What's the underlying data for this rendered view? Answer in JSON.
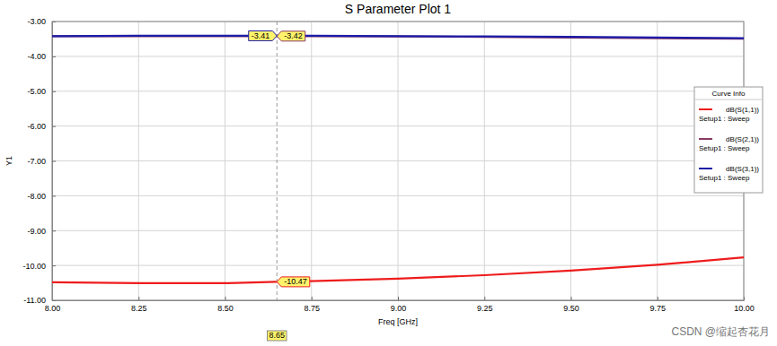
{
  "chart_data": {
    "type": "line",
    "title": "S Parameter Plot 1",
    "x_label": "Freq [GHz]",
    "y_label": "Y1",
    "x": [
      8.0,
      8.25,
      8.5,
      8.65,
      8.75,
      9.0,
      9.25,
      9.5,
      9.75,
      10.0
    ],
    "series": [
      {
        "name": "dB(S(1,1))",
        "sweep": "Setup1 : Sweep",
        "color": "#ee1c1c",
        "values": [
          -10.48,
          -10.51,
          -10.51,
          -10.47,
          -10.45,
          -10.38,
          -10.28,
          -10.15,
          -9.98,
          -9.77
        ]
      },
      {
        "name": "dB(S(2,1))",
        "sweep": "Setup1 : Sweep",
        "color": "#8b3a62",
        "values": [
          -3.42,
          -3.42,
          -3.42,
          -3.42,
          -3.42,
          -3.43,
          -3.44,
          -3.46,
          -3.48,
          -3.49
        ]
      },
      {
        "name": "dB(S(3,1))",
        "sweep": "Setup1 : Sweep",
        "color": "#1c1ca8",
        "values": [
          -3.42,
          -3.41,
          -3.41,
          -3.41,
          -3.41,
          -3.42,
          -3.43,
          -3.44,
          -3.46,
          -3.48
        ]
      }
    ],
    "xlim": [
      8,
      10
    ],
    "xticks": [
      {
        "value": 8,
        "label": "8.00"
      },
      {
        "value": 8.25,
        "label": "8.25"
      },
      {
        "value": 8.5,
        "label": "8.50"
      },
      {
        "value": 8.75,
        "label": "8.75"
      },
      {
        "value": 9,
        "label": "9.00"
      },
      {
        "value": 9.25,
        "label": "9.25"
      },
      {
        "value": 9.5,
        "label": "9.50"
      },
      {
        "value": 9.75,
        "label": "9.75"
      },
      {
        "value": 10,
        "label": "10.00"
      }
    ],
    "ylim": [
      -11,
      -3
    ],
    "yticks": [
      {
        "value": -11,
        "label": "-11.00"
      },
      {
        "value": -10,
        "label": "-10.00"
      },
      {
        "value": -9,
        "label": "-9.00"
      },
      {
        "value": -8,
        "label": "-8.00"
      },
      {
        "value": -7,
        "label": "-7.00"
      },
      {
        "value": -6,
        "label": "-6.00"
      },
      {
        "value": -5,
        "label": "-5.00"
      },
      {
        "value": -4,
        "label": "-4.00"
      },
      {
        "value": -3,
        "label": "-3.00"
      }
    ],
    "grid": true,
    "legend": "right",
    "legend_title": "Curve Info",
    "marker": {
      "x": 8.65,
      "points": [
        {
          "series": 0,
          "value": -10.47
        },
        {
          "series": 1,
          "value": -3.42
        },
        {
          "series": 2,
          "value": -3.41
        }
      ]
    },
    "watermark": "CSDN @缩起杏花月"
  }
}
